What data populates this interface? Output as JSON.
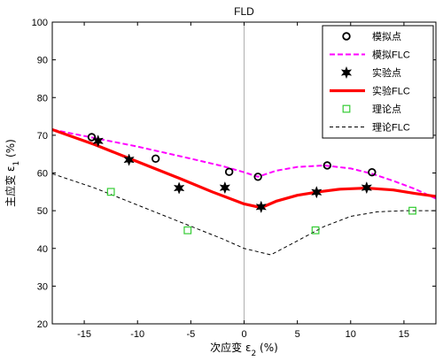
{
  "chart_data": {
    "type": "line",
    "title": "FLD",
    "xlabel": "次应变 ε2 (%)",
    "ylabel": "主应变 ε1 (%)",
    "xlim": [
      -18,
      18
    ],
    "ylim": [
      20,
      100
    ],
    "xticks": [
      -15,
      -10,
      -5,
      0,
      5,
      10,
      15
    ],
    "yticks": [
      20,
      30,
      40,
      50,
      60,
      70,
      80,
      90,
      100
    ],
    "grid": false,
    "vertical_reference_line_x": 0,
    "legend_position": "top-right",
    "series": [
      {
        "name": "模拟点",
        "kind": "scatter",
        "marker": "circle",
        "color": "#000000",
        "points": [
          [
            -14.3,
            69.5
          ],
          [
            -8.3,
            63.8
          ],
          [
            -1.4,
            60.3
          ],
          [
            1.3,
            59.0
          ],
          [
            7.8,
            62.0
          ],
          [
            12.0,
            60.2
          ]
        ]
      },
      {
        "name": "模拟FLC",
        "kind": "line",
        "style": "dashed",
        "color": "#ff00ff",
        "points": [
          [
            -18,
            71.5
          ],
          [
            -10,
            67.0
          ],
          [
            -5,
            63.8
          ],
          [
            -2,
            61.8
          ],
          [
            0,
            60.2
          ],
          [
            1.3,
            59.0
          ],
          [
            3,
            60.6
          ],
          [
            5,
            61.6
          ],
          [
            7.5,
            62.0
          ],
          [
            10,
            61.2
          ],
          [
            12,
            59.8
          ],
          [
            14,
            57.9
          ],
          [
            16,
            55.8
          ],
          [
            18,
            53.2
          ]
        ]
      },
      {
        "name": "实验点",
        "kind": "scatter",
        "marker": "hexagram",
        "color": "#000000",
        "points": [
          [
            -13.7,
            68.5
          ],
          [
            -10.8,
            63.5
          ],
          [
            -6.1,
            56.0
          ],
          [
            -1.8,
            56.1
          ],
          [
            1.6,
            51.0
          ],
          [
            6.8,
            54.9
          ],
          [
            11.5,
            56.1
          ]
        ]
      },
      {
        "name": "实验FLC",
        "kind": "line",
        "style": "solid",
        "color": "#ff0000",
        "points": [
          [
            -18,
            71.5
          ],
          [
            -14,
            67.5
          ],
          [
            -10,
            63.0
          ],
          [
            -6,
            58.5
          ],
          [
            -3,
            55.0
          ],
          [
            0,
            51.8
          ],
          [
            1.6,
            50.8
          ],
          [
            3,
            52.5
          ],
          [
            5,
            54.1
          ],
          [
            7,
            55.0
          ],
          [
            9,
            55.7
          ],
          [
            11.5,
            56.0
          ],
          [
            14,
            55.5
          ],
          [
            16,
            54.6
          ],
          [
            18,
            53.8
          ]
        ]
      },
      {
        "name": "理论点",
        "kind": "scatter",
        "marker": "square",
        "color": "#33cc33",
        "points": [
          [
            -12.5,
            55.0
          ],
          [
            -5.3,
            44.8
          ],
          [
            6.7,
            44.8
          ],
          [
            15.8,
            50.0
          ]
        ]
      },
      {
        "name": "理论FLC",
        "kind": "line",
        "style": "dashed",
        "color": "#000000",
        "points": [
          [
            -18,
            59.8
          ],
          [
            -14,
            56.0
          ],
          [
            -10,
            51.5
          ],
          [
            -6,
            47.0
          ],
          [
            -2,
            42.5
          ],
          [
            0,
            40.0
          ],
          [
            2.5,
            38.3
          ],
          [
            5,
            42.0
          ],
          [
            7.5,
            45.8
          ],
          [
            10,
            48.5
          ],
          [
            12.5,
            49.7
          ],
          [
            15,
            50.0
          ],
          [
            18,
            50.0
          ]
        ]
      }
    ]
  }
}
